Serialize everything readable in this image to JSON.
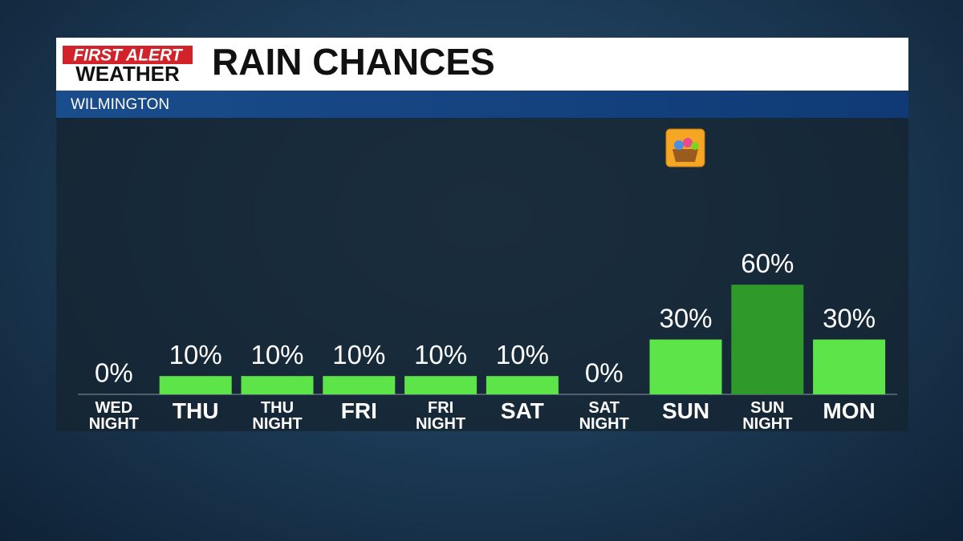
{
  "header": {
    "logo_top": "FIRST ALERT",
    "logo_bottom": "WEATHER",
    "title": "RAIN CHANCES",
    "location": "WILMINGTON"
  },
  "chart_data": {
    "type": "bar",
    "categories": [
      "WED NIGHT",
      "THU",
      "THU NIGHT",
      "FRI",
      "FRI NIGHT",
      "SAT",
      "SAT NIGHT",
      "SUN",
      "SUN NIGHT",
      "MON"
    ],
    "values": [
      0,
      10,
      10,
      10,
      10,
      10,
      0,
      30,
      60,
      30
    ],
    "value_labels": [
      "0%",
      "10%",
      "10%",
      "10%",
      "10%",
      "10%",
      "0%",
      "30%",
      "60%",
      "30%"
    ],
    "colors": [
      "#5de448",
      "#5de448",
      "#5de448",
      "#5de448",
      "#5de448",
      "#5de448",
      "#5de448",
      "#5de448",
      "#2f9a2a",
      "#5de448"
    ]
  }
}
